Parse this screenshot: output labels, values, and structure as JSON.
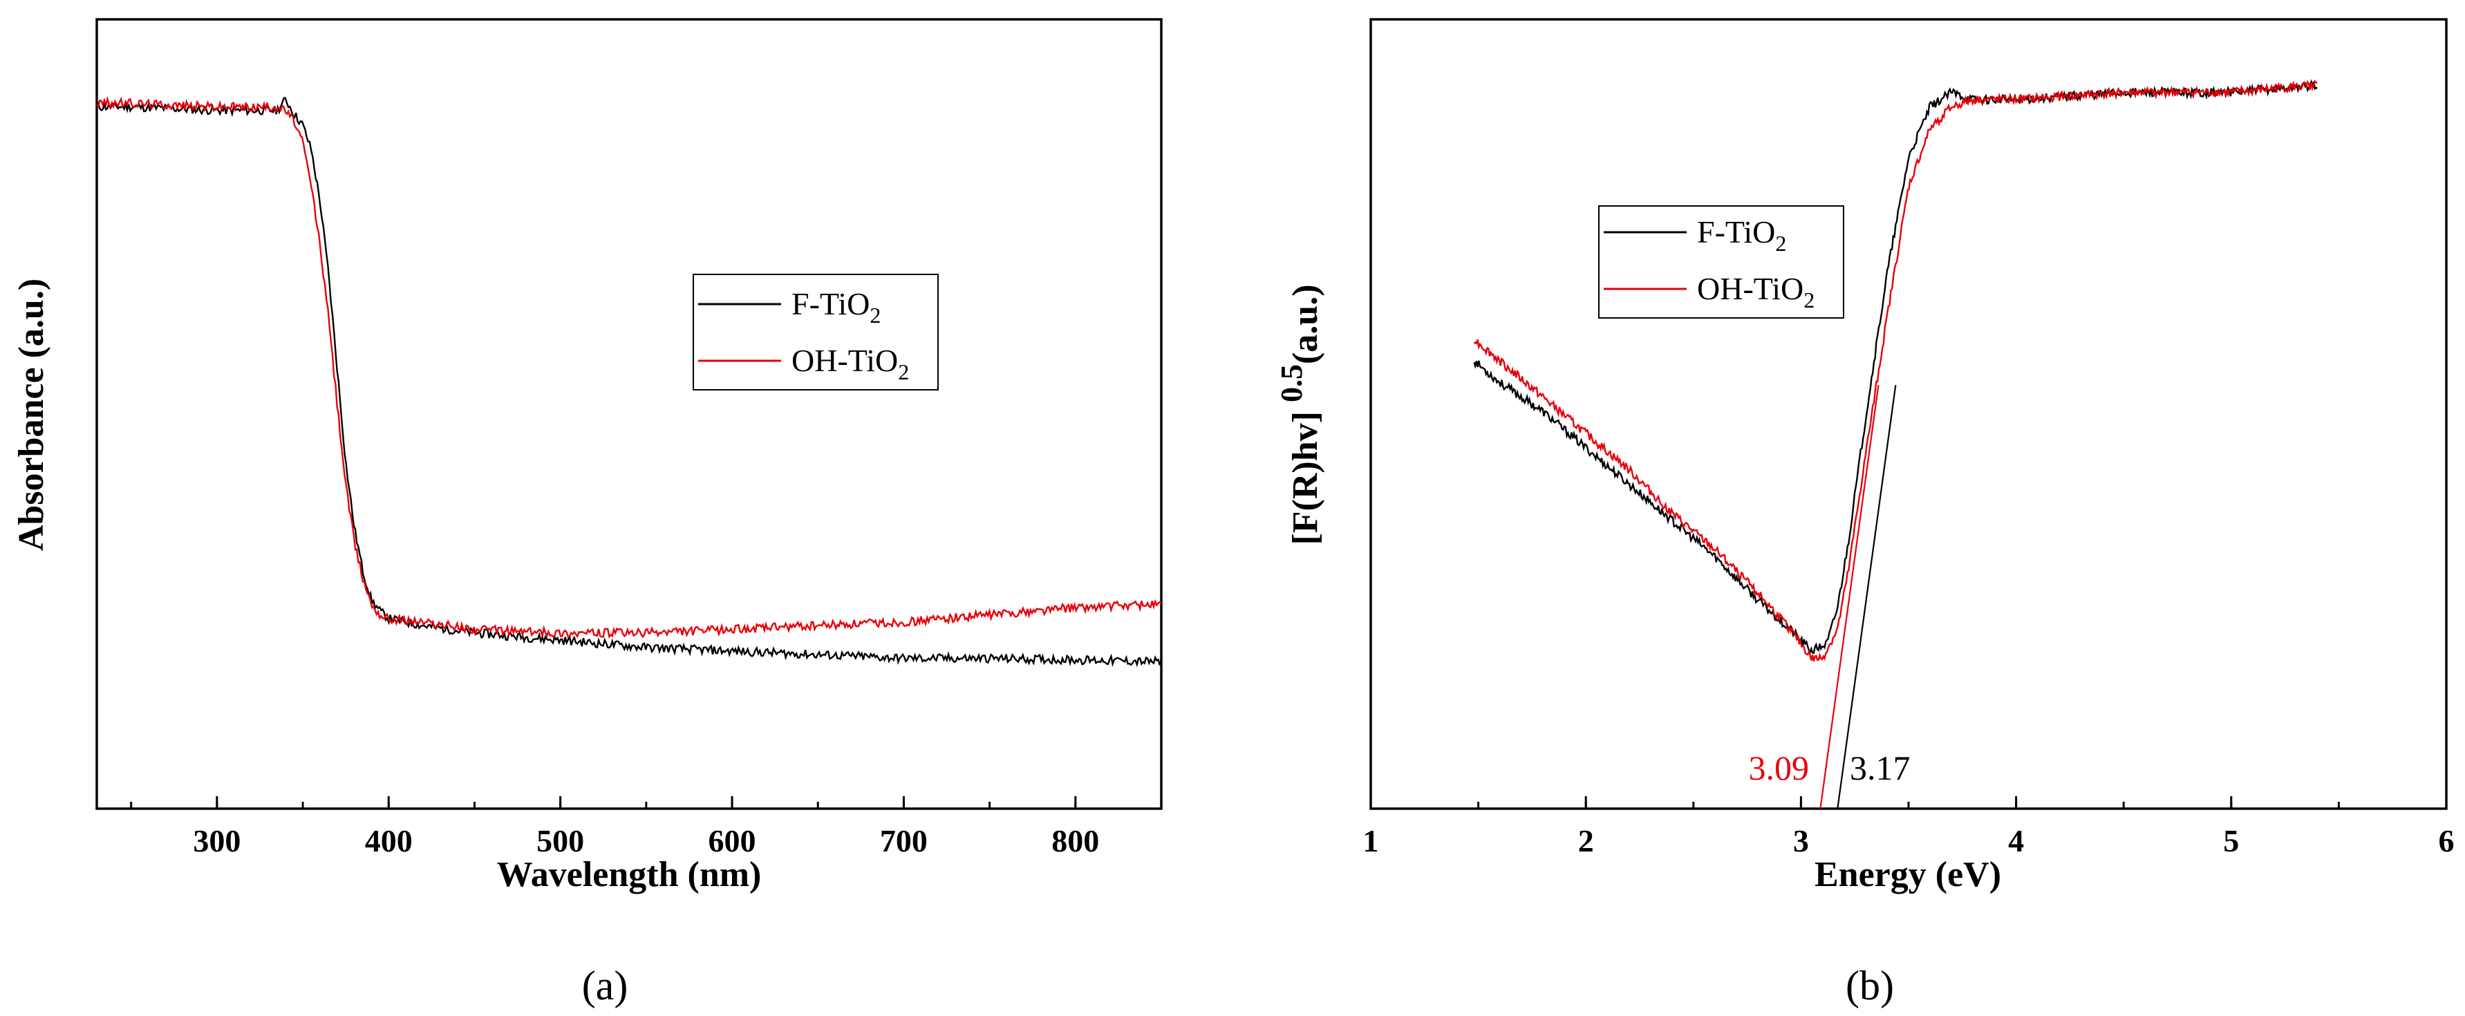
{
  "chart_data": [
    {
      "id": "a",
      "type": "line",
      "panel_label": "(a)",
      "xlabel": "Wavelength (nm)",
      "ylabel": "Absorbance (a.u.)",
      "xlim": [
        230,
        850
      ],
      "ylim": [
        0,
        1
      ],
      "xticks": [
        "300",
        "400",
        "500",
        "600",
        "700",
        "800"
      ],
      "yticks_shown": false,
      "legend": {
        "position": "center-right",
        "entries": [
          "F-TiO2",
          "OH-TiO2"
        ]
      },
      "series": [
        {
          "name": "F-TiO2",
          "color": "#000000",
          "x": [
            230,
            250,
            300,
            335,
            340,
            345,
            350,
            355,
            360,
            365,
            370,
            375,
            380,
            385,
            390,
            395,
            400,
            420,
            450,
            500,
            550,
            600,
            650,
            700,
            750,
            800,
            850
          ],
          "y": [
            0.91,
            0.91,
            0.905,
            0.905,
            0.92,
            0.9,
            0.885,
            0.85,
            0.78,
            0.68,
            0.55,
            0.42,
            0.33,
            0.27,
            0.23,
            0.215,
            0.205,
            0.195,
            0.185,
            0.175,
            0.165,
            0.16,
            0.155,
            0.15,
            0.15,
            0.148,
            0.145
          ]
        },
        {
          "name": "OH-TiO2",
          "color": "#e8000b",
          "x": [
            230,
            250,
            300,
            335,
            340,
            345,
            350,
            355,
            360,
            365,
            370,
            375,
            380,
            385,
            390,
            395,
            400,
            420,
            450,
            500,
            550,
            600,
            650,
            700,
            750,
            800,
            850
          ],
          "y": [
            0.915,
            0.915,
            0.91,
            0.91,
            0.905,
            0.89,
            0.86,
            0.8,
            0.72,
            0.62,
            0.5,
            0.39,
            0.31,
            0.26,
            0.225,
            0.21,
            0.205,
            0.2,
            0.19,
            0.185,
            0.185,
            0.19,
            0.195,
            0.2,
            0.21,
            0.22,
            0.225
          ]
        }
      ]
    },
    {
      "id": "b",
      "type": "line",
      "panel_label": "(b)",
      "xlabel": "Energy (eV)",
      "ylabel": "[F(R)hv] 0.5(a.u.)",
      "ylabel_parts": [
        "[F(R)hv] ",
        "0.5",
        "(a.u.)"
      ],
      "xlim": [
        1,
        6
      ],
      "ylim": [
        0,
        1
      ],
      "xticks": [
        "1",
        "2",
        "3",
        "4",
        "5",
        "6"
      ],
      "yticks_shown": false,
      "legend": {
        "position": "upper-left-center",
        "entries": [
          "F-TiO2",
          "OH-TiO2"
        ]
      },
      "series": [
        {
          "name": "F-TiO2",
          "color": "#000000",
          "x": [
            1.48,
            1.6,
            1.8,
            2.0,
            2.2,
            2.4,
            2.6,
            2.8,
            2.95,
            3.05,
            3.12,
            3.17,
            3.22,
            3.3,
            3.4,
            3.5,
            3.6,
            3.7,
            3.8,
            4.0,
            4.5,
            5.0,
            5.4
          ],
          "y": [
            0.56,
            0.53,
            0.49,
            0.44,
            0.39,
            0.34,
            0.29,
            0.23,
            0.19,
            0.16,
            0.17,
            0.22,
            0.31,
            0.48,
            0.68,
            0.84,
            0.91,
            0.93,
            0.92,
            0.92,
            0.93,
            0.93,
            0.94
          ]
        },
        {
          "name": "OH-TiO2",
          "color": "#e8000b",
          "x": [
            1.48,
            1.6,
            1.8,
            2.0,
            2.2,
            2.4,
            2.6,
            2.8,
            2.95,
            3.05,
            3.1,
            3.17,
            3.22,
            3.3,
            3.4,
            3.5,
            3.6,
            3.7,
            3.8,
            4.0,
            4.5,
            5.0,
            5.4
          ],
          "y": [
            0.59,
            0.56,
            0.51,
            0.46,
            0.41,
            0.35,
            0.3,
            0.24,
            0.19,
            0.15,
            0.15,
            0.19,
            0.27,
            0.43,
            0.62,
            0.8,
            0.88,
            0.91,
            0.92,
            0.92,
            0.93,
            0.93,
            0.94
          ]
        }
      ],
      "tangents": [
        {
          "label": "3.09",
          "color": "#e8000b",
          "x0": 3.09,
          "slope_per_ev": 1.95
        },
        {
          "label": "3.17",
          "color": "#000000",
          "x0": 3.17,
          "slope_per_ev": 1.95
        }
      ],
      "annotations": [
        {
          "text": "3.09",
          "color": "#e8000b"
        },
        {
          "text": "3.17",
          "color": "#000000"
        }
      ]
    }
  ],
  "legend_labels": {
    "f_base": "F-TiO",
    "f_sub": "2",
    "oh_base": "OH-TiO",
    "oh_sub": "2"
  }
}
